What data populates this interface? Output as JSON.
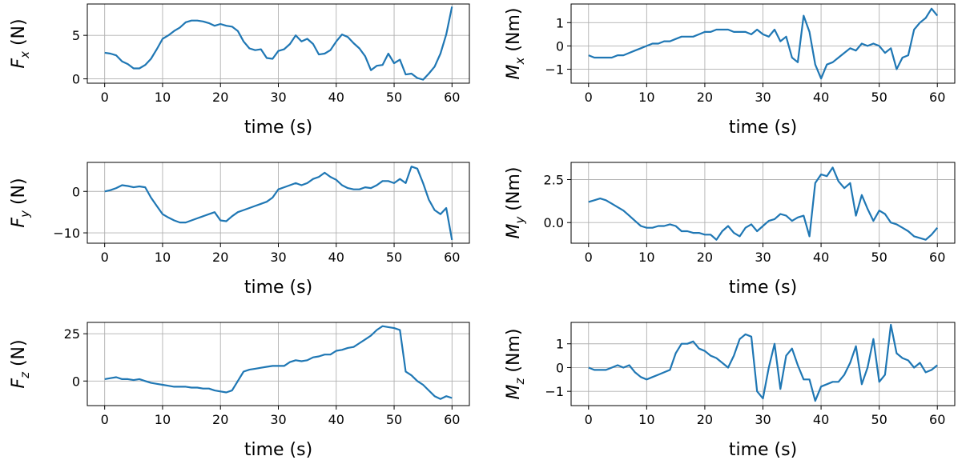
{
  "chart_data": [
    {
      "type": "line",
      "xlabel": "time (s)",
      "ylabel": {
        "sym": "F",
        "sub": "x",
        "unit": " (N)"
      },
      "xlim": [
        -3,
        63
      ],
      "ylim": [
        -0.5,
        8.6
      ],
      "xticks": [
        0,
        10,
        20,
        30,
        40,
        50,
        60
      ],
      "yticks": [
        0,
        5
      ],
      "grid": true,
      "color": "#1f77b4",
      "series": [
        {
          "x": [
            0,
            1,
            2,
            3,
            4,
            5,
            6,
            7,
            8,
            9,
            10,
            11,
            12,
            13,
            14,
            15,
            16,
            17,
            18,
            19,
            20,
            21,
            22,
            23,
            24,
            25,
            26,
            27,
            28,
            29,
            30,
            31,
            32,
            33,
            34,
            35,
            36,
            37,
            38,
            39,
            40,
            41,
            42,
            43,
            44,
            45,
            46,
            47,
            48,
            49,
            50,
            51,
            52,
            53,
            54,
            55,
            56,
            57,
            58,
            59,
            60
          ],
          "y": [
            3.0,
            2.9,
            2.7,
            2.0,
            1.7,
            1.2,
            1.2,
            1.6,
            2.3,
            3.4,
            4.6,
            5.0,
            5.5,
            5.9,
            6.5,
            6.7,
            6.7,
            6.6,
            6.4,
            6.1,
            6.3,
            6.1,
            6.0,
            5.5,
            4.3,
            3.5,
            3.3,
            3.4,
            2.4,
            2.3,
            3.2,
            3.4,
            4.0,
            5.0,
            4.3,
            4.6,
            4.0,
            2.8,
            2.9,
            3.3,
            4.3,
            5.1,
            4.8,
            4.1,
            3.5,
            2.6,
            1.0,
            1.5,
            1.6,
            2.9,
            1.8,
            2.2,
            0.5,
            0.6,
            0.1,
            -0.1,
            0.6,
            1.4,
            2.9,
            5.1,
            8.3
          ]
        }
      ]
    },
    {
      "type": "line",
      "xlabel": "time (s)",
      "ylabel": {
        "sym": "M",
        "sub": "x",
        "unit": " (Nm)"
      },
      "xlim": [
        -3,
        63
      ],
      "ylim": [
        -1.6,
        1.8
      ],
      "xticks": [
        0,
        10,
        20,
        30,
        40,
        50,
        60
      ],
      "yticks": [
        -1,
        0,
        1
      ],
      "grid": true,
      "color": "#1f77b4",
      "series": [
        {
          "x": [
            0,
            1,
            2,
            3,
            4,
            5,
            6,
            7,
            8,
            9,
            10,
            11,
            12,
            13,
            14,
            15,
            16,
            17,
            18,
            19,
            20,
            21,
            22,
            23,
            24,
            25,
            26,
            27,
            28,
            29,
            30,
            31,
            32,
            33,
            34,
            35,
            36,
            37,
            38,
            39,
            40,
            41,
            42,
            43,
            44,
            45,
            46,
            47,
            48,
            49,
            50,
            51,
            52,
            53,
            54,
            55,
            56,
            57,
            58,
            59,
            60
          ],
          "y": [
            -0.4,
            -0.5,
            -0.5,
            -0.5,
            -0.5,
            -0.4,
            -0.4,
            -0.3,
            -0.2,
            -0.1,
            0.0,
            0.1,
            0.1,
            0.2,
            0.2,
            0.3,
            0.4,
            0.4,
            0.4,
            0.5,
            0.6,
            0.6,
            0.7,
            0.7,
            0.7,
            0.6,
            0.6,
            0.6,
            0.5,
            0.7,
            0.5,
            0.4,
            0.7,
            0.2,
            0.4,
            -0.5,
            -0.7,
            1.3,
            0.6,
            -0.8,
            -1.4,
            -0.8,
            -0.7,
            -0.5,
            -0.3,
            -0.1,
            -0.2,
            0.1,
            0.0,
            0.1,
            0.0,
            -0.3,
            -0.1,
            -1.0,
            -0.5,
            -0.4,
            0.7,
            1.0,
            1.2,
            1.6,
            1.3
          ]
        }
      ]
    },
    {
      "type": "line",
      "xlabel": "time (s)",
      "ylabel": {
        "sym": "F",
        "sub": "y",
        "unit": " (N)"
      },
      "xlim": [
        -3,
        63
      ],
      "ylim": [
        -12.5,
        7.0
      ],
      "xticks": [
        0,
        10,
        20,
        30,
        40,
        50,
        60
      ],
      "yticks": [
        -10,
        0
      ],
      "grid": true,
      "color": "#1f77b4",
      "series": [
        {
          "x": [
            0,
            1,
            2,
            3,
            4,
            5,
            6,
            7,
            8,
            9,
            10,
            11,
            12,
            13,
            14,
            15,
            16,
            17,
            18,
            19,
            20,
            21,
            22,
            23,
            24,
            25,
            26,
            27,
            28,
            29,
            30,
            31,
            32,
            33,
            34,
            35,
            36,
            37,
            38,
            39,
            40,
            41,
            42,
            43,
            44,
            45,
            46,
            47,
            48,
            49,
            50,
            51,
            52,
            53,
            54,
            55,
            56,
            57,
            58,
            59,
            60
          ],
          "y": [
            0.0,
            0.3,
            0.8,
            1.5,
            1.3,
            1.0,
            1.2,
            1.0,
            -1.5,
            -3.5,
            -5.5,
            -6.3,
            -7.0,
            -7.5,
            -7.5,
            -7.0,
            -6.5,
            -6.0,
            -5.5,
            -5.0,
            -7.0,
            -7.2,
            -6.0,
            -5.0,
            -4.5,
            -4.0,
            -3.5,
            -3.0,
            -2.5,
            -1.5,
            0.5,
            1.0,
            1.5,
            2.0,
            1.5,
            2.0,
            3.0,
            3.5,
            4.5,
            3.5,
            2.8,
            1.5,
            0.8,
            0.5,
            0.5,
            1.0,
            0.8,
            1.5,
            2.5,
            2.5,
            2.0,
            3.0,
            2.0,
            6.0,
            5.5,
            2.0,
            -2.0,
            -4.5,
            -5.5,
            -4.0,
            -11.7
          ]
        }
      ]
    },
    {
      "type": "line",
      "xlabel": "time (s)",
      "ylabel": {
        "sym": "M",
        "sub": "y",
        "unit": " (Nm)"
      },
      "xlim": [
        -3,
        63
      ],
      "ylim": [
        -1.2,
        3.5
      ],
      "xticks": [
        0,
        10,
        20,
        30,
        40,
        50,
        60
      ],
      "yticks": [
        0.0,
        2.5
      ],
      "grid": true,
      "color": "#1f77b4",
      "series": [
        {
          "x": [
            0,
            1,
            2,
            3,
            4,
            5,
            6,
            7,
            8,
            9,
            10,
            11,
            12,
            13,
            14,
            15,
            16,
            17,
            18,
            19,
            20,
            21,
            22,
            23,
            24,
            25,
            26,
            27,
            28,
            29,
            30,
            31,
            32,
            33,
            34,
            35,
            36,
            37,
            38,
            39,
            40,
            41,
            42,
            43,
            44,
            45,
            46,
            47,
            48,
            49,
            50,
            51,
            52,
            53,
            54,
            55,
            56,
            57,
            58,
            59,
            60
          ],
          "y": [
            1.2,
            1.3,
            1.4,
            1.3,
            1.1,
            0.9,
            0.7,
            0.4,
            0.1,
            -0.2,
            -0.3,
            -0.3,
            -0.2,
            -0.2,
            -0.1,
            -0.2,
            -0.5,
            -0.5,
            -0.6,
            -0.6,
            -0.7,
            -0.7,
            -1.0,
            -0.5,
            -0.2,
            -0.6,
            -0.8,
            -0.3,
            -0.1,
            -0.5,
            -0.2,
            0.1,
            0.2,
            0.5,
            0.4,
            0.1,
            0.3,
            0.4,
            -0.8,
            2.3,
            2.8,
            2.7,
            3.2,
            2.4,
            2.0,
            2.3,
            0.4,
            1.6,
            0.8,
            0.1,
            0.7,
            0.5,
            0.0,
            -0.1,
            -0.3,
            -0.5,
            -0.8,
            -0.9,
            -1.0,
            -0.7,
            -0.3
          ]
        }
      ]
    },
    {
      "type": "line",
      "xlabel": "time (s)",
      "ylabel": {
        "sym": "F",
        "sub": "z",
        "unit": " (N)"
      },
      "xlim": [
        -3,
        63
      ],
      "ylim": [
        -13,
        31
      ],
      "xticks": [
        0,
        10,
        20,
        30,
        40,
        50,
        60
      ],
      "yticks": [
        0,
        25
      ],
      "grid": true,
      "color": "#1f77b4",
      "series": [
        {
          "x": [
            0,
            1,
            2,
            3,
            4,
            5,
            6,
            7,
            8,
            9,
            10,
            11,
            12,
            13,
            14,
            15,
            16,
            17,
            18,
            19,
            20,
            21,
            22,
            23,
            24,
            25,
            26,
            27,
            28,
            29,
            30,
            31,
            32,
            33,
            34,
            35,
            36,
            37,
            38,
            39,
            40,
            41,
            42,
            43,
            44,
            45,
            46,
            47,
            48,
            49,
            50,
            51,
            52,
            53,
            54,
            55,
            56,
            57,
            58,
            59,
            60
          ],
          "y": [
            1,
            1.5,
            2,
            1,
            1,
            0.5,
            1,
            0,
            -1,
            -1.5,
            -2,
            -2.5,
            -3,
            -3,
            -3,
            -3.5,
            -3.5,
            -4,
            -4,
            -5,
            -5.5,
            -6,
            -5,
            0,
            5,
            6,
            6.5,
            7,
            7.5,
            8,
            8,
            8,
            10,
            11,
            10.5,
            11,
            12.5,
            13,
            14,
            14,
            16,
            16.5,
            17.5,
            18,
            20,
            22,
            24,
            27,
            29,
            28.5,
            28,
            27,
            5,
            3,
            0,
            -2,
            -5,
            -8,
            -9.5,
            -8,
            -9
          ]
        }
      ]
    },
    {
      "type": "line",
      "xlabel": "time (s)",
      "ylabel": {
        "sym": "M",
        "sub": "z",
        "unit": " (Nm)"
      },
      "xlim": [
        -3,
        63
      ],
      "ylim": [
        -1.6,
        1.9
      ],
      "xticks": [
        0,
        10,
        20,
        30,
        40,
        50,
        60
      ],
      "yticks": [
        -1,
        0,
        1
      ],
      "grid": true,
      "color": "#1f77b4",
      "series": [
        {
          "x": [
            0,
            1,
            2,
            3,
            4,
            5,
            6,
            7,
            8,
            9,
            10,
            11,
            12,
            13,
            14,
            15,
            16,
            17,
            18,
            19,
            20,
            21,
            22,
            23,
            24,
            25,
            26,
            27,
            28,
            29,
            30,
            31,
            32,
            33,
            34,
            35,
            36,
            37,
            38,
            39,
            40,
            41,
            42,
            43,
            44,
            45,
            46,
            47,
            48,
            49,
            50,
            51,
            52,
            53,
            54,
            55,
            56,
            57,
            58,
            59,
            60
          ],
          "y": [
            0.0,
            -0.1,
            -0.1,
            -0.1,
            0.0,
            0.1,
            0.0,
            0.1,
            -0.2,
            -0.4,
            -0.5,
            -0.4,
            -0.3,
            -0.2,
            -0.1,
            0.6,
            1.0,
            1.0,
            1.1,
            0.8,
            0.7,
            0.5,
            0.4,
            0.2,
            0.0,
            0.5,
            1.2,
            1.4,
            1.3,
            -1.0,
            -1.3,
            0.0,
            1.0,
            -0.9,
            0.5,
            0.8,
            0.1,
            -0.5,
            -0.5,
            -1.4,
            -0.8,
            -0.7,
            -0.6,
            -0.6,
            -0.3,
            0.2,
            0.9,
            -0.7,
            0.0,
            1.2,
            -0.6,
            -0.3,
            1.8,
            0.6,
            0.4,
            0.3,
            0.0,
            0.2,
            -0.2,
            -0.1,
            0.1
          ]
        }
      ]
    }
  ]
}
